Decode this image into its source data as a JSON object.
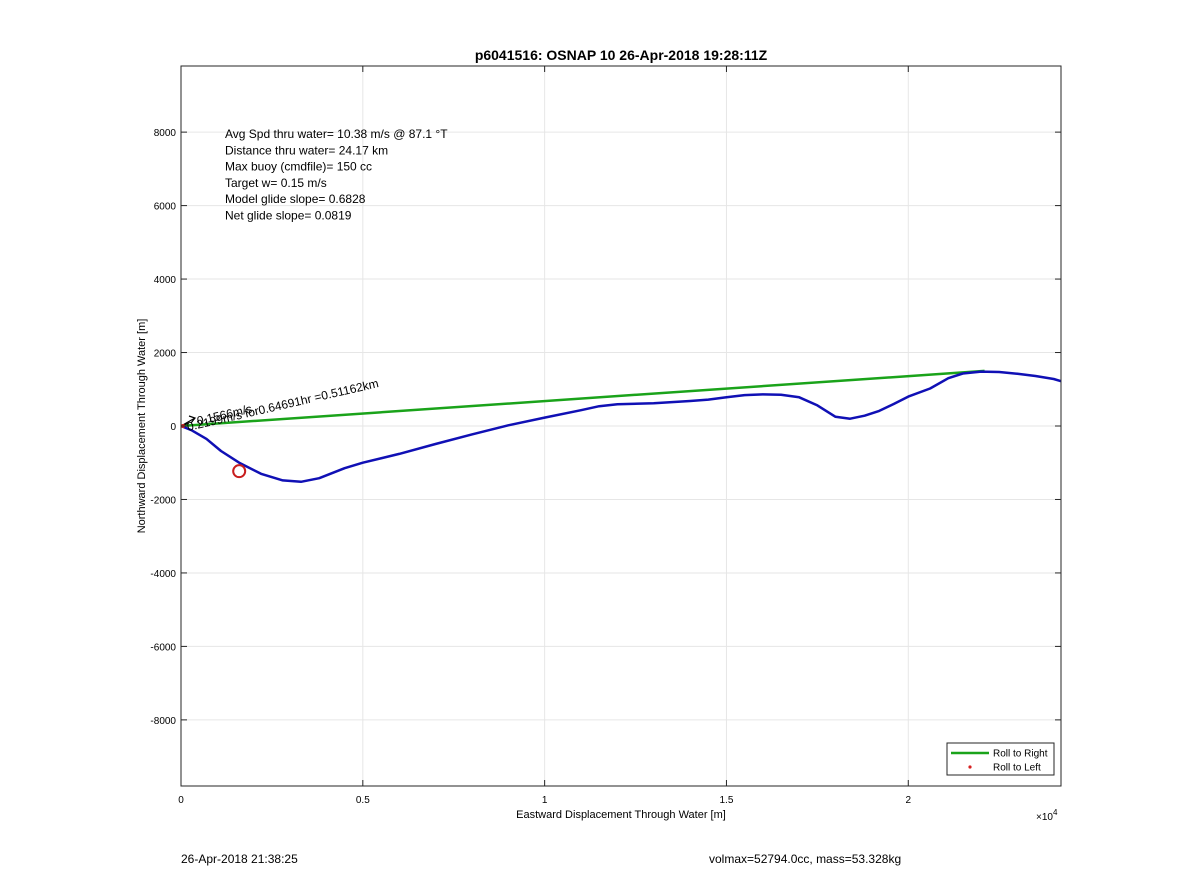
{
  "chart_data": {
    "type": "line",
    "title": "p6041516: OSNAP 10 26-Apr-2018 19:28:11Z",
    "xlabel": "Eastward Displacement Through Water [m]",
    "ylabel": "Northward Displacement Through Water [m]",
    "x_exponent_label": "×10",
    "x_exponent_power": "4",
    "xlim": [
      0,
      24200
    ],
    "ylim": [
      -9800,
      9800
    ],
    "x_ticks": [
      0,
      5000,
      10000,
      15000,
      20000
    ],
    "x_tick_labels": [
      "0",
      "0.5",
      "1",
      "1.5",
      "2"
    ],
    "y_ticks": [
      -8000,
      -6000,
      -4000,
      -2000,
      0,
      2000,
      4000,
      6000,
      8000
    ],
    "y_tick_labels": [
      "-8000",
      "-6000",
      "-4000",
      "-2000",
      "0",
      "2000",
      "4000",
      "6000",
      "8000"
    ],
    "grid": true,
    "legend_position": "bottom-right",
    "series": [
      {
        "name": "Roll to Right",
        "color": "#1aa31a",
        "x": [
          0,
          22100
        ],
        "y": [
          0,
          1500
        ]
      },
      {
        "name": "Roll to Left",
        "color": "#d62020",
        "marker": "dot",
        "x": [],
        "y": []
      },
      {
        "color": "#1010b5",
        "x": [
          0,
          300,
          700,
          1100,
          1600,
          2200,
          2800,
          3300,
          3800,
          4500,
          5000,
          6000,
          7000,
          8000,
          9000,
          10000,
          11000,
          11500,
          12000,
          13000,
          14000,
          14500,
          15000,
          15500,
          16000,
          16500,
          17000,
          17500,
          18000,
          18400,
          18800,
          19200,
          19600,
          20000,
          20600,
          21100,
          21500,
          22000,
          22500,
          23000,
          23500,
          24000,
          24200
        ],
        "y": [
          0,
          -120,
          -350,
          -680,
          -1000,
          -1300,
          -1480,
          -1520,
          -1420,
          -1150,
          -1000,
          -760,
          -490,
          -230,
          20,
          230,
          430,
          540,
          590,
          620,
          680,
          720,
          780,
          840,
          860,
          850,
          780,
          560,
          250,
          200,
          280,
          410,
          600,
          800,
          1020,
          1300,
          1430,
          1480,
          1470,
          1420,
          1360,
          1280,
          1220
        ]
      }
    ],
    "annotations": {
      "stats_lines": [
        "Avg Spd thru water= 10.38 m/s @  87.1 °T",
        "Distance thru water= 24.17 km",
        "Max buoy (cmdfile)= 150 cc",
        "Target w= 0.15 m/s",
        "Model glide slope= 0.6828",
        "Net glide slope= 0.0819"
      ],
      "vector_label": "0.2199m/s for0.64691hr =0.51162km",
      "vector_overlap_label": "0.1566m/s",
      "circle_marker": {
        "x": 1600,
        "y": -1230,
        "color": "#c81e1e"
      }
    }
  },
  "footer": {
    "left": "26-Apr-2018 21:38:25",
    "right": "volmax=52794.0cc, mass=53.328kg"
  }
}
